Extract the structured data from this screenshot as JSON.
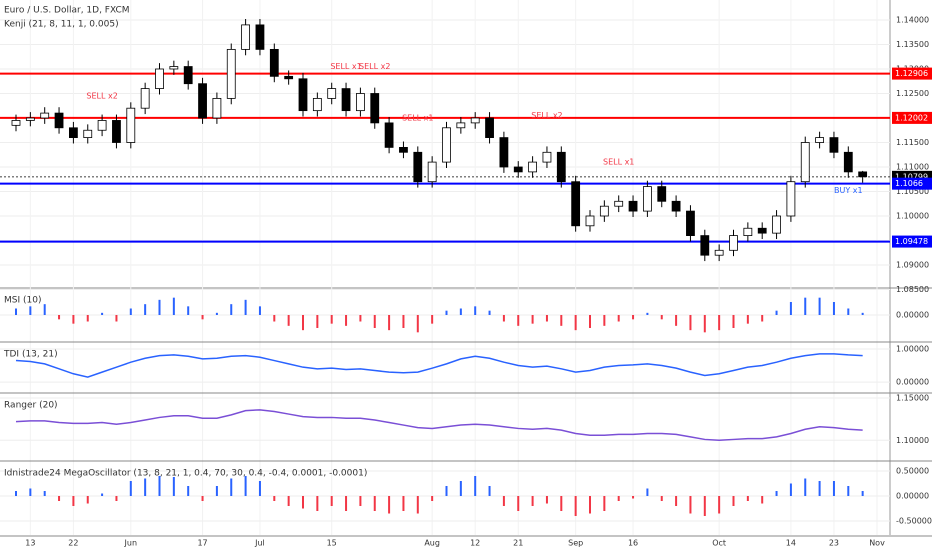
{
  "chart_data": [
    {
      "type": "candlestick",
      "title": "Euro / U.S. Dollar, 1D, FXCM",
      "subtitle": "Kenji (21, 8, 11, 1, 0.005)",
      "up_color": "#ffffff",
      "down_color": "#000000",
      "open": [
        1.1185,
        1.1195,
        1.12,
        1.121,
        1.118,
        1.116,
        1.1175,
        1.1195,
        1.115,
        1.122,
        1.126,
        1.13,
        1.1305,
        1.127,
        1.12,
        1.124,
        1.134,
        1.139,
        1.134,
        1.1285,
        1.128,
        1.1215,
        1.124,
        1.126,
        1.1215,
        1.125,
        1.119,
        1.114,
        1.113,
        1.107,
        1.111,
        1.118,
        1.119,
        1.12,
        1.116,
        1.11,
        1.109,
        1.111,
        1.113,
        1.107,
        1.098,
        1.1,
        1.102,
        1.103,
        1.101,
        1.106,
        1.103,
        1.101,
        1.096,
        1.092,
        1.093,
        1.096,
        1.0975,
        1.0965,
        1.1,
        1.107,
        1.115,
        1.116,
        1.113,
        1.109
      ],
      "high": [
        1.1207,
        1.1212,
        1.1222,
        1.1222,
        1.1192,
        1.1187,
        1.1207,
        1.1207,
        1.1232,
        1.1272,
        1.1312,
        1.1317,
        1.1317,
        1.1282,
        1.1252,
        1.1352,
        1.1402,
        1.1402,
        1.1352,
        1.1297,
        1.1292,
        1.1252,
        1.1272,
        1.1272,
        1.1262,
        1.1262,
        1.1202,
        1.1152,
        1.1142,
        1.1122,
        1.1192,
        1.1202,
        1.1212,
        1.1212,
        1.1172,
        1.1112,
        1.1122,
        1.1142,
        1.1142,
        1.1082,
        1.1012,
        1.1032,
        1.1042,
        1.1042,
        1.1072,
        1.1072,
        1.1042,
        1.1022,
        1.0972,
        1.0942,
        1.0972,
        1.0987,
        1.0987,
        1.1012,
        1.1082,
        1.1162,
        1.1172,
        1.1172,
        1.1142,
        1.1092
      ],
      "low": [
        1.1173,
        1.1183,
        1.1188,
        1.1168,
        1.1148,
        1.1148,
        1.1163,
        1.1138,
        1.1138,
        1.1208,
        1.1248,
        1.1288,
        1.1258,
        1.1188,
        1.1188,
        1.1228,
        1.1328,
        1.1328,
        1.1273,
        1.1268,
        1.1203,
        1.1203,
        1.1228,
        1.1203,
        1.1203,
        1.1178,
        1.1128,
        1.1118,
        1.1058,
        1.1058,
        1.1098,
        1.1168,
        1.1178,
        1.1148,
        1.1088,
        1.1078,
        1.1078,
        1.1098,
        1.1058,
        1.0968,
        1.0968,
        1.0988,
        1.1008,
        1.0998,
        1.0998,
        1.1018,
        1.0998,
        1.0948,
        1.0908,
        1.0908,
        1.0918,
        1.0948,
        1.0953,
        1.0953,
        1.0988,
        1.1058,
        1.1138,
        1.1118,
        1.1078,
        1.1068
      ],
      "close": [
        1.1195,
        1.12,
        1.121,
        1.118,
        1.116,
        1.1175,
        1.1195,
        1.115,
        1.122,
        1.126,
        1.13,
        1.1305,
        1.127,
        1.12,
        1.124,
        1.134,
        1.139,
        1.134,
        1.1285,
        1.128,
        1.1215,
        1.124,
        1.126,
        1.1215,
        1.125,
        1.119,
        1.114,
        1.113,
        1.107,
        1.111,
        1.118,
        1.119,
        1.12,
        1.116,
        1.11,
        1.109,
        1.111,
        1.113,
        1.107,
        1.098,
        1.1,
        1.102,
        1.103,
        1.101,
        1.106,
        1.103,
        1.101,
        1.096,
        1.092,
        1.093,
        1.096,
        1.0975,
        1.0965,
        1.1,
        1.107,
        1.115,
        1.116,
        1.113,
        1.109,
        1.108
      ],
      "levels": [
        {
          "value": 1.12906,
          "color": "#ff0000"
        },
        {
          "value": 1.12002,
          "color": "#ff0000"
        },
        {
          "value": 1.10799,
          "color": "#000000"
        },
        {
          "value": 1.1066,
          "color": "#0000ff"
        },
        {
          "value": 1.09478,
          "color": "#0000ff"
        }
      ],
      "annotations": [
        {
          "text": "SELL x2",
          "x": 6,
          "y": 1.1245
        },
        {
          "text": "SELL x1",
          "x": 23,
          "y": 1.1305
        },
        {
          "text": "SELL x2",
          "x": 25,
          "y": 1.1305
        },
        {
          "text": "SELL x1",
          "x": 28,
          "y": 1.12
        },
        {
          "text": "SELL x2",
          "x": 37,
          "y": 1.1205
        },
        {
          "text": "SELL x1",
          "x": 42,
          "y": 1.111
        },
        {
          "text": "BUY x1",
          "x": 58,
          "y": 1.1052
        }
      ],
      "ylim": [
        1.08551,
        1.14408
      ],
      "yticks": [
        {
          "value": 1.085,
          "label": "1.08500"
        },
        {
          "value": 1.09,
          "label": "1.09000"
        },
        {
          "value": 1.095,
          "label": "1.09500"
        },
        {
          "value": 1.1,
          "label": "1.10000"
        },
        {
          "value": 1.105,
          "label": "1.10500"
        },
        {
          "value": 1.11,
          "label": "1.11000"
        },
        {
          "value": 1.115,
          "label": "1.11500"
        },
        {
          "value": 1.12,
          "label": "1.12000"
        },
        {
          "value": 1.125,
          "label": "1.12500"
        },
        {
          "value": 1.13,
          "label": "1.13000"
        },
        {
          "value": 1.135,
          "label": "1.13500"
        },
        {
          "value": 1.14,
          "label": "1.14000"
        }
      ],
      "xticks": [
        {
          "value": 1,
          "label": "13"
        },
        {
          "value": 4,
          "label": "22"
        },
        {
          "value": 8,
          "label": "Jun"
        },
        {
          "value": 13,
          "label": "17"
        },
        {
          "value": 17,
          "label": "Jul"
        },
        {
          "value": 22,
          "label": "15"
        },
        {
          "value": 29,
          "label": "Aug"
        },
        {
          "value": 32,
          "label": "12"
        },
        {
          "value": 35,
          "label": "21"
        },
        {
          "value": 39,
          "label": "Sep"
        },
        {
          "value": 43,
          "label": "16"
        },
        {
          "value": 49,
          "label": "Oct"
        },
        {
          "value": 54,
          "label": "14"
        },
        {
          "value": 57,
          "label": "23"
        },
        {
          "value": 60,
          "label": "Nov"
        }
      ]
    },
    {
      "type": "bar",
      "title": "MSI (10)",
      "color_positive": "#2962ff",
      "color_negative": "#f23645",
      "values": [
        0.3,
        0.4,
        0.5,
        -0.2,
        -0.4,
        -0.3,
        0.1,
        -0.3,
        0.3,
        0.5,
        0.7,
        0.8,
        0.4,
        -0.2,
        0.1,
        0.5,
        0.7,
        0.4,
        -0.3,
        -0.5,
        -0.7,
        -0.6,
        -0.4,
        -0.5,
        -0.3,
        -0.6,
        -0.7,
        -0.6,
        -0.8,
        -0.4,
        0.2,
        0.3,
        0.4,
        0.2,
        -0.3,
        -0.5,
        -0.4,
        -0.3,
        -0.5,
        -0.7,
        -0.6,
        -0.5,
        -0.3,
        -0.2,
        0.1,
        -0.2,
        -0.5,
        -0.7,
        -0.8,
        -0.7,
        -0.6,
        -0.4,
        -0.3,
        0.2,
        0.6,
        0.8,
        0.8,
        0.6,
        0.3,
        0.1
      ],
      "ylim": [
        -1.2,
        1.2
      ],
      "yticks": [
        {
          "value": 0,
          "label": "0.00000"
        }
      ]
    },
    {
      "type": "line",
      "title": "TDI (13, 21)",
      "color": "#2962ff",
      "values": [
        0.65,
        0.62,
        0.55,
        0.4,
        0.25,
        0.15,
        0.3,
        0.45,
        0.6,
        0.72,
        0.8,
        0.82,
        0.78,
        0.7,
        0.72,
        0.78,
        0.8,
        0.75,
        0.65,
        0.55,
        0.45,
        0.4,
        0.42,
        0.38,
        0.4,
        0.35,
        0.3,
        0.28,
        0.3,
        0.42,
        0.55,
        0.7,
        0.78,
        0.72,
        0.6,
        0.5,
        0.45,
        0.48,
        0.4,
        0.3,
        0.35,
        0.45,
        0.5,
        0.52,
        0.55,
        0.5,
        0.42,
        0.3,
        0.2,
        0.25,
        0.35,
        0.45,
        0.5,
        0.6,
        0.72,
        0.8,
        0.85,
        0.85,
        0.82,
        0.8
      ],
      "ylim": [
        -0.3,
        1.18
      ],
      "yticks": [
        {
          "value": 0,
          "label": "0.00000"
        },
        {
          "value": 1,
          "label": "1.00000"
        }
      ]
    },
    {
      "type": "line",
      "title": "Ranger (20)",
      "color": "#7a4fd6",
      "values": [
        1.122,
        1.123,
        1.123,
        1.121,
        1.12,
        1.12,
        1.121,
        1.119,
        1.121,
        1.124,
        1.127,
        1.129,
        1.129,
        1.126,
        1.126,
        1.13,
        1.135,
        1.136,
        1.134,
        1.131,
        1.128,
        1.127,
        1.127,
        1.126,
        1.126,
        1.124,
        1.121,
        1.118,
        1.115,
        1.114,
        1.116,
        1.118,
        1.119,
        1.118,
        1.116,
        1.114,
        1.113,
        1.114,
        1.112,
        1.108,
        1.106,
        1.106,
        1.107,
        1.107,
        1.108,
        1.108,
        1.107,
        1.104,
        1.101,
        1.1,
        1.101,
        1.102,
        1.102,
        1.104,
        1.108,
        1.113,
        1.116,
        1.115,
        1.113,
        1.112
      ],
      "ylim": [
        1.0767,
        1.1547
      ],
      "yticks": [
        {
          "value": 1.1,
          "label": "1.10000"
        },
        {
          "value": 1.15,
          "label": "1.15000"
        }
      ]
    },
    {
      "type": "bar",
      "title": "Idnistrade24 MegaOscillator (13, 8, 21, 1, 0.4, 70, 30, 0.4, -0.4, 0.0001, -0.0001)",
      "color_positive": "#2962ff",
      "color_negative": "#f23645",
      "values": [
        0.1,
        0.15,
        0.1,
        -0.1,
        -0.2,
        -0.15,
        0.05,
        -0.1,
        0.3,
        0.35,
        0.4,
        0.38,
        0.2,
        -0.1,
        0.2,
        0.35,
        0.4,
        0.3,
        -0.1,
        -0.2,
        -0.25,
        -0.3,
        -0.2,
        -0.3,
        -0.2,
        -0.3,
        -0.35,
        -0.3,
        -0.35,
        -0.1,
        0.2,
        0.3,
        0.4,
        0.2,
        -0.2,
        -0.3,
        -0.2,
        -0.15,
        -0.3,
        -0.4,
        -0.35,
        -0.3,
        -0.1,
        -0.05,
        0.15,
        -0.1,
        -0.2,
        -0.35,
        -0.4,
        -0.35,
        -0.2,
        -0.1,
        -0.15,
        0.1,
        0.25,
        0.35,
        0.3,
        0.3,
        0.2,
        0.1
      ],
      "ylim": [
        -0.78,
        0.68
      ],
      "yticks": [
        {
          "value": -0.5,
          "label": "-0.50000"
        },
        {
          "value": 0,
          "label": "0.00000"
        },
        {
          "value": 0.5,
          "label": "0.50000"
        }
      ]
    }
  ]
}
